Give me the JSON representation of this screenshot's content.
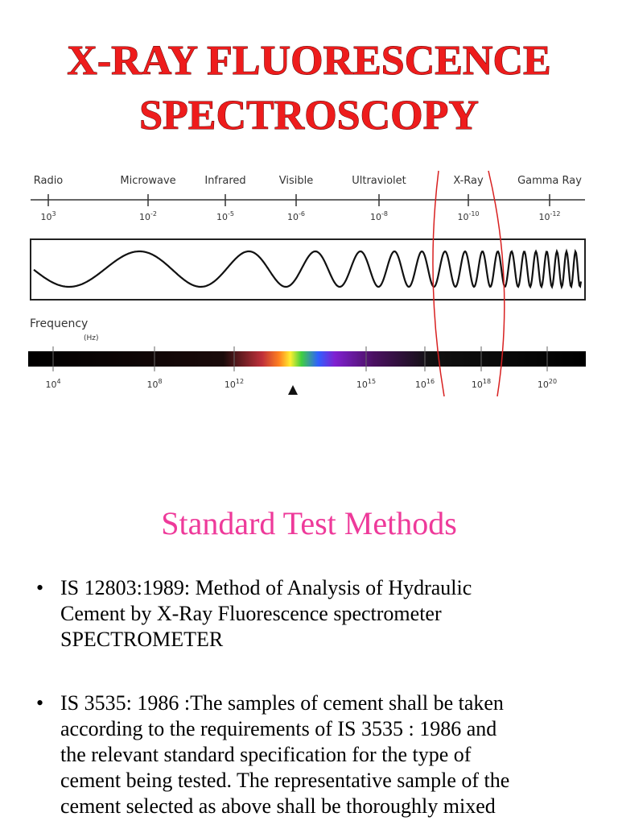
{
  "slide1": {
    "title_lines": [
      "X-RAY FLUORESCENCE",
      "SPECTROSCOPY"
    ]
  },
  "diagram": {
    "bands": [
      "Radio",
      "Microwave",
      "Infrared",
      "Visible",
      "Ultraviolet",
      "X-Ray",
      "Gamma Ray"
    ],
    "wavelength_ticks": [
      {
        "base": "10",
        "exp": "3"
      },
      {
        "base": "10",
        "exp": "-2"
      },
      {
        "base": "10",
        "exp": "-5"
      },
      {
        "base": "10",
        "exp": "-6"
      },
      {
        "base": "10",
        "exp": "-8"
      },
      {
        "base": "10",
        "exp": "-10"
      },
      {
        "base": "10",
        "exp": "-12"
      }
    ],
    "frequency_label": "Frequency",
    "frequency_unit": "(Hz)",
    "frequency_ticks": [
      {
        "base": "10",
        "exp": "4"
      },
      {
        "base": "10",
        "exp": "8"
      },
      {
        "base": "10",
        "exp": "12"
      },
      {
        "base": "10",
        "exp": "15"
      },
      {
        "base": "10",
        "exp": "16"
      },
      {
        "base": "10",
        "exp": "18"
      },
      {
        "base": "10",
        "exp": "20"
      }
    ]
  },
  "slide2": {
    "title": "Standard Test Methods",
    "bullets": [
      {
        "lines": [
          "IS 12803:1989: Method of Analysis of Hydraulic",
          "Cement by X-Ray Fluorescence spectrometer",
          "SPECTROMETER"
        ]
      },
      {
        "lines": [
          "IS 3535: 1986 :The samples of cement shall be taken",
          "according to the requirements of IS 3535 : 1986 and",
          "the relevant standard specification for the type of",
          "cement being tested. The representative sample of the",
          "cement selected as above shall be thoroughly mixed"
        ]
      }
    ]
  }
}
